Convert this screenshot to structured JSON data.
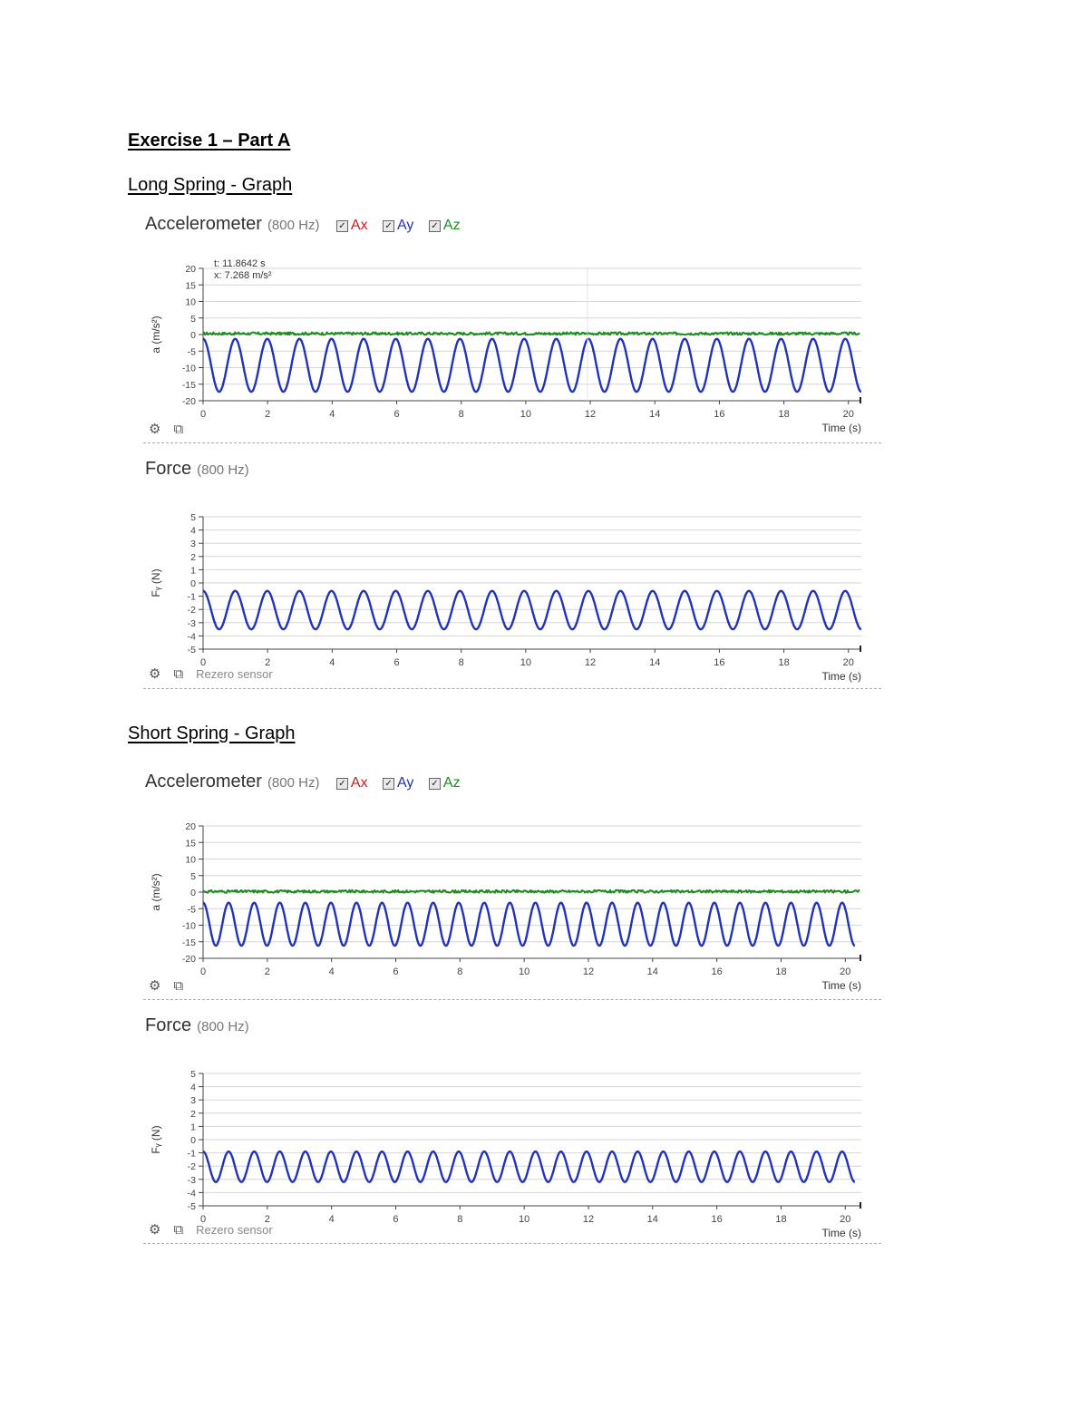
{
  "document": {
    "heading": "Exercise 1 – Part A",
    "sections": [
      {
        "title": "Long Spring - Graph"
      },
      {
        "title": "Short Spring - Graph"
      }
    ]
  },
  "toolbar": {
    "gear_icon": "gear-icon",
    "export_icon": "external-link-icon",
    "rezero_label": "Rezero sensor"
  },
  "panels": {
    "long_acc": {
      "title": "Accelerometer",
      "rate": "(800 Hz)",
      "legend": [
        "Ax",
        "Ay",
        "Az"
      ],
      "tooltip": {
        "line1": "t: 11.8642 s",
        "line2": "x: 7.268 m/s²"
      }
    },
    "long_force": {
      "title": "Force",
      "rate": "(800 Hz)"
    },
    "short_acc": {
      "title": "Accelerometer",
      "rate": "(800 Hz)",
      "legend": [
        "Ax",
        "Ay",
        "Az"
      ]
    },
    "short_force": {
      "title": "Force",
      "rate": "(800 Hz)"
    }
  },
  "colors": {
    "ax": "#d01c1c",
    "ay": "#2233bb",
    "az": "#1f8a1f"
  },
  "chart_data": [
    {
      "id": "long_acc",
      "type": "line",
      "xlabel": "Time (s)",
      "ylabel": "a (m/s²)",
      "xlim": [
        0,
        20.4
      ],
      "ylim": [
        -20,
        20
      ],
      "xticks": [
        0,
        2,
        4,
        6,
        8,
        10,
        12,
        14,
        16,
        18,
        20
      ],
      "yticks": [
        20,
        15,
        10,
        5,
        0,
        -5,
        -10,
        -15,
        -20
      ],
      "grid": true,
      "series": [
        {
          "name": "Az",
          "kind": "noise",
          "offset": 0.3,
          "noise": 0.8,
          "color": "#1f8a1f"
        },
        {
          "name": "Ay",
          "kind": "sine",
          "offset": -9.3,
          "amplitude": 8.0,
          "cycles": 20.5,
          "x_end": 20.4,
          "phase": 1.5708,
          "color": "#2233bb"
        }
      ]
    },
    {
      "id": "long_force",
      "type": "line",
      "xlabel": "Time (s)",
      "ylabel": "Fᵧ (N)",
      "xlim": [
        0,
        20.4
      ],
      "ylim": [
        -5,
        5
      ],
      "xticks": [
        0,
        2,
        4,
        6,
        8,
        10,
        12,
        14,
        16,
        18,
        20
      ],
      "yticks": [
        5,
        4,
        3,
        2,
        1,
        0,
        -1,
        -2,
        -3,
        -4,
        -5
      ],
      "grid": true,
      "series": [
        {
          "name": "Fy",
          "kind": "sine",
          "offset": -2.05,
          "amplitude": 1.45,
          "cycles": 20.5,
          "x_end": 20.4,
          "phase": 1.5708,
          "color": "#2233bb"
        }
      ]
    },
    {
      "id": "short_acc",
      "type": "line",
      "xlabel": "Time (s)",
      "ylabel": "a (m/s²)",
      "xlim": [
        0,
        20.5
      ],
      "ylim": [
        -20,
        20
      ],
      "xticks": [
        0,
        2,
        4,
        6,
        8,
        10,
        12,
        14,
        16,
        18,
        20
      ],
      "yticks": [
        20,
        15,
        10,
        5,
        0,
        -5,
        -10,
        -15,
        -20
      ],
      "grid": true,
      "series": [
        {
          "name": "Az",
          "kind": "noise",
          "offset": 0.2,
          "noise": 0.8,
          "color": "#1f8a1f"
        },
        {
          "name": "Ay",
          "kind": "sine",
          "offset": -9.7,
          "amplitude": 6.5,
          "cycles": 25.5,
          "x_end": 20.3,
          "phase": 1.5708,
          "color": "#2233bb"
        }
      ]
    },
    {
      "id": "short_force",
      "type": "line",
      "xlabel": "Time (s)",
      "ylabel": "Fᵧ (N)",
      "xlim": [
        0,
        20.5
      ],
      "ylim": [
        -5,
        5
      ],
      "xticks": [
        0,
        2,
        4,
        6,
        8,
        10,
        12,
        14,
        16,
        18,
        20
      ],
      "yticks": [
        5,
        4,
        3,
        2,
        1,
        0,
        -1,
        -2,
        -3,
        -4,
        -5
      ],
      "grid": true,
      "series": [
        {
          "name": "Fy",
          "kind": "sine",
          "offset": -2.05,
          "amplitude": 1.15,
          "cycles": 25.5,
          "x_end": 20.3,
          "phase": 1.5708,
          "color": "#2233bb"
        }
      ]
    }
  ]
}
